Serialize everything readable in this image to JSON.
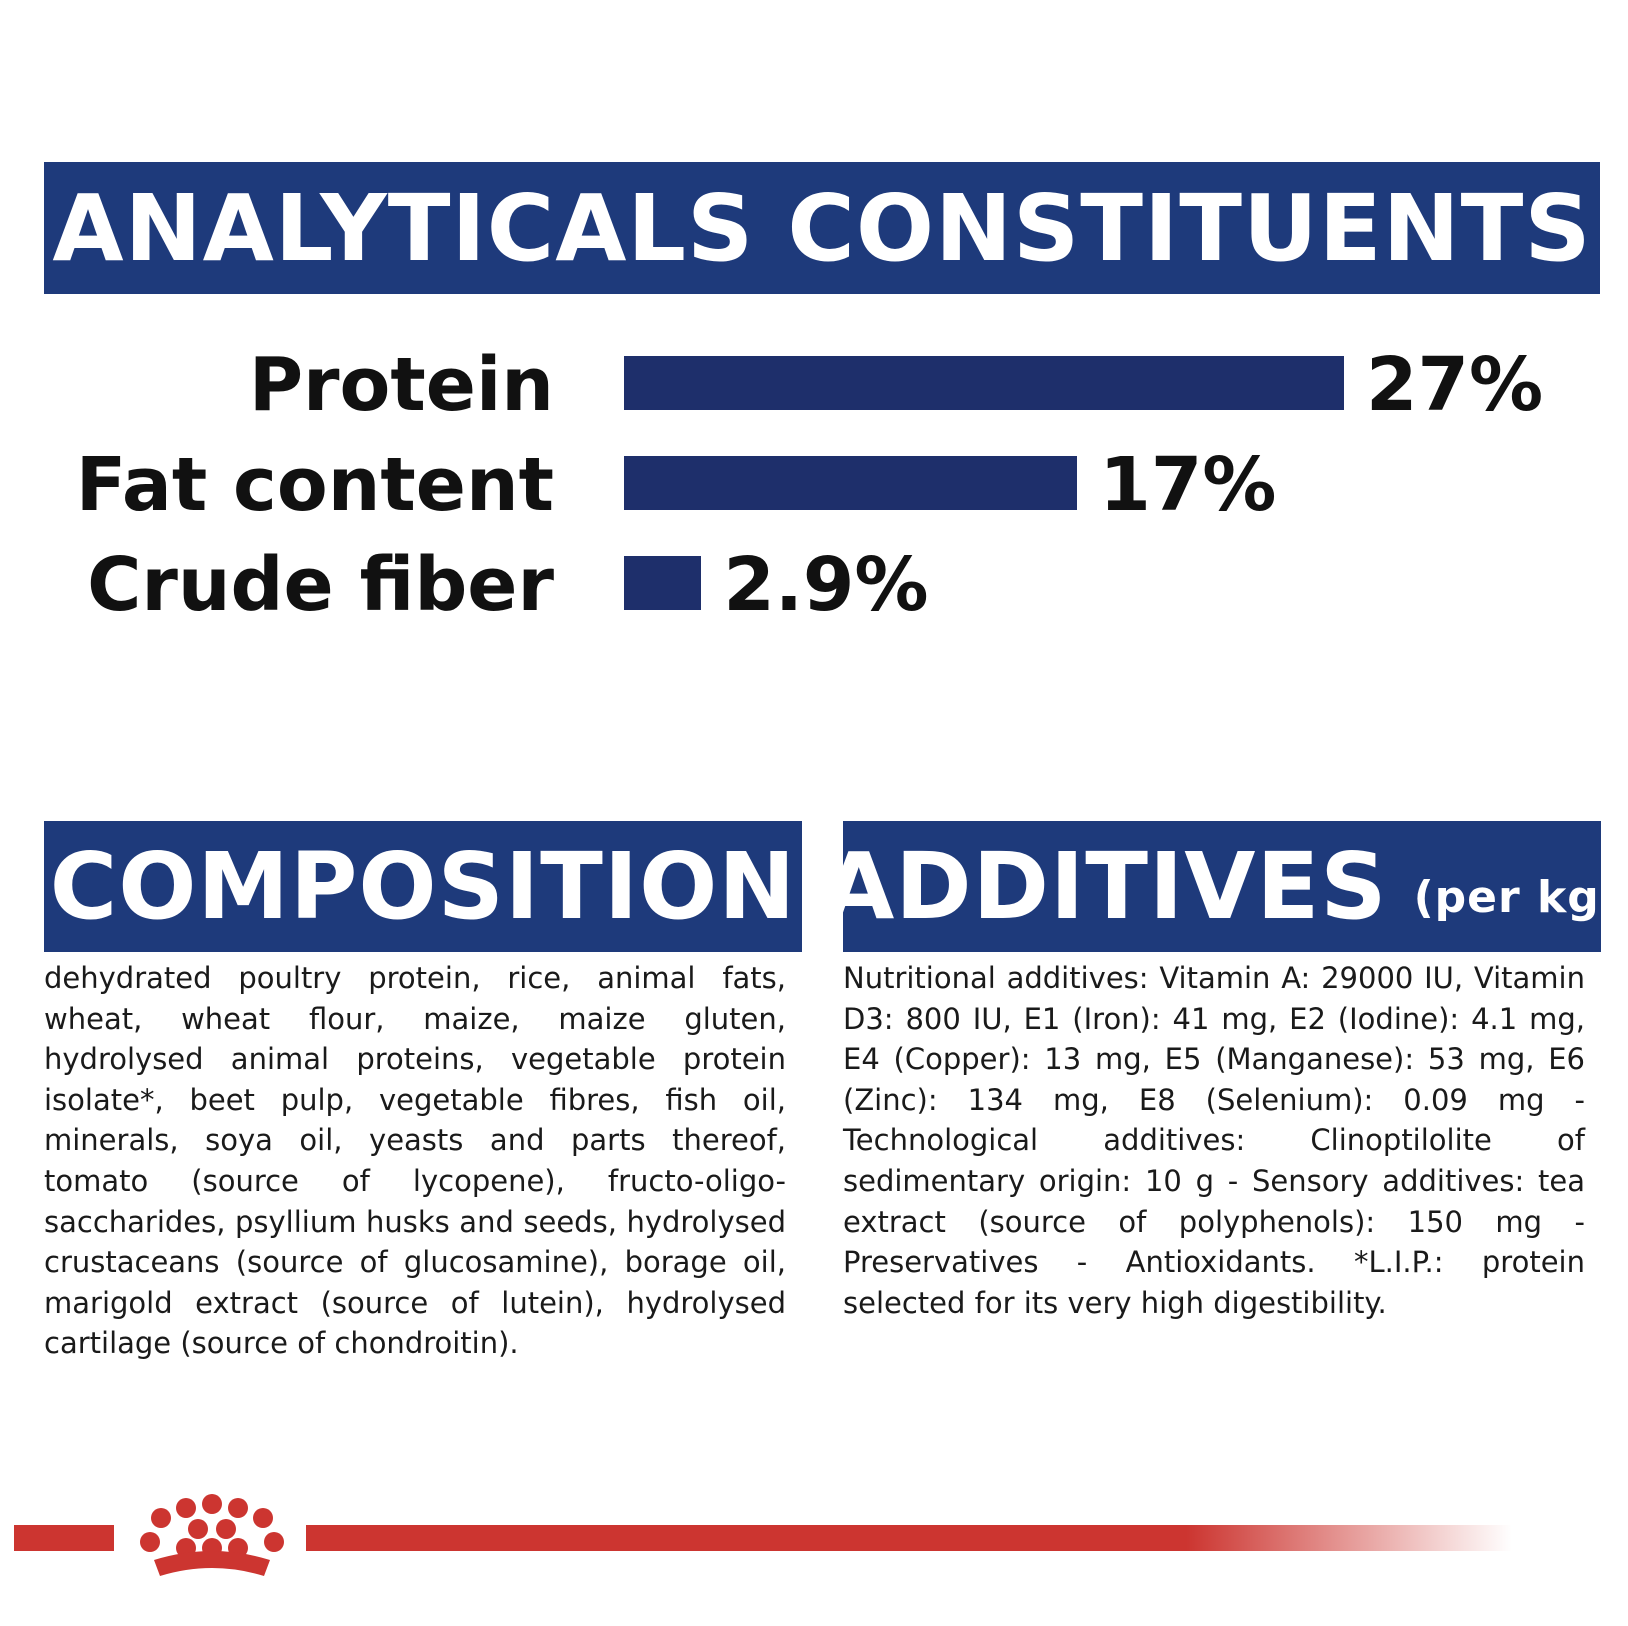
{
  "header": {
    "title": "ANALYTICALS CONSTITUENTS"
  },
  "chart_data": {
    "type": "bar",
    "orientation": "horizontal",
    "title": "ANALYTICALS CONSTITUENTS",
    "categories": [
      "Protein",
      "Fat content",
      "Crude fiber"
    ],
    "values": [
      27,
      17,
      2.9
    ],
    "value_labels": [
      "27%",
      "17%",
      "2.9%"
    ],
    "unit": "%",
    "xlim": [
      0,
      27
    ],
    "grid": false,
    "bar_color": "#1e2f6b"
  },
  "composition": {
    "title": "COMPOSITION",
    "text": "dehydrated poultry protein, rice, animal fats, wheat, wheat flour, maize, maize gluten, hydrolysed animal proteins, vegetable protein isolate*, beet pulp, vegetable fibres, fish oil, minerals, soya oil, yeasts and parts thereof, tomato (source of lycopene), fructo-oligo-saccharides, psyllium husks and seeds, hydrolysed crustaceans (source of glucosamine), borage oil, marigold extract (source of lutein), hydrolysed cartilage (source of chondroitin)."
  },
  "additives": {
    "title": "ADDITIVES",
    "subtitle": "(per kg)",
    "text": "Nutritional additives: Vitamin A: 29000 IU, Vitamin D3: 800 IU, E1 (Iron): 41 mg, E2 (Iodine): 4.1 mg, E4 (Copper): 13 mg, E5 (Manganese): 53 mg, E6 (Zinc): 134 mg, E8 (Selenium): 0.09 mg - Technological additives: Clinoptilolite of sedimentary origin: 10 g - Sensory additives: tea extract (source of polyphenols): 150 mg - Preservatives - Antioxidants. *L.I.P.: protein selected for its very high digestibility."
  },
  "colors": {
    "banner_blue": "#1e3a7b",
    "bar_blue": "#1e2f6b",
    "brand_red": "#cc3530"
  },
  "footer": {
    "logo_icon": "crown-logo-icon"
  }
}
